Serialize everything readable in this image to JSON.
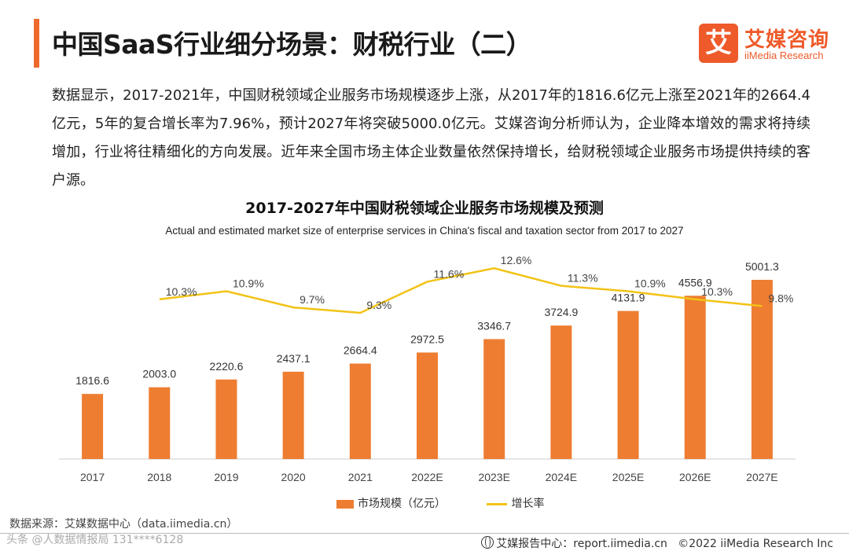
{
  "header": {
    "title": "中国SaaS行业细分场景：财税行业（二）",
    "logo_mark": "艾",
    "logo_cn": "艾媒咨询",
    "logo_en": "iiMedia Research"
  },
  "intro": "数据显示，2017-2021年，中国财税领域企业服务市场规模逐步上涨，从2017年的1816.6亿元上涨至2021年的2664.4亿元，5年的复合增长率为7.96%，预计2027年将突破5000.0亿元。艾媒咨询分析师认为，企业降本增效的需求将持续增加，行业将往精细化的方向发展。近年来全国市场主体企业数量依然保持增长，给财税领域企业服务市场提供持续的客户源。",
  "chart_data": {
    "type": "bar",
    "title": "2017-2027年中国财税领域企业服务市场规模及预测",
    "subtitle": "Actual and estimated market size of enterprise services in China's fiscal and taxation sector from 2017 to 2027",
    "categories": [
      "2017",
      "2018",
      "2019",
      "2020",
      "2021",
      "2022E",
      "2023E",
      "2024E",
      "2025E",
      "2026E",
      "2027E"
    ],
    "series": [
      {
        "name": "市场规模（亿元）",
        "type": "bar",
        "color": "#ee7d31",
        "values": [
          1816.6,
          2003.0,
          2220.6,
          2437.1,
          2664.4,
          2972.5,
          3346.7,
          3724.9,
          4131.9,
          4556.9,
          5001.3
        ],
        "labels": [
          "1816.6",
          "2003.0",
          "2220.6",
          "2437.1",
          "2664.4",
          "2972.5",
          "3346.7",
          "3724.9",
          "4131.9",
          "4556.9",
          "5001.3"
        ]
      },
      {
        "name": "增长率",
        "type": "line",
        "color": "#f2c317",
        "values": [
          null,
          10.3,
          10.9,
          9.7,
          9.3,
          11.6,
          12.6,
          11.3,
          10.9,
          10.3,
          9.8
        ],
        "labels": [
          null,
          "10.3%",
          "10.9%",
          "9.7%",
          "9.3%",
          "11.6%",
          "12.6%",
          "11.3%",
          "10.9%",
          "10.3%",
          "9.8%"
        ]
      }
    ],
    "legend": [
      "市场规模（亿元）",
      "增长率"
    ],
    "legend_position": "bottom"
  },
  "footer": {
    "source": "数据来源：艾媒数据中心（data.iimedia.cn）",
    "report_center": "艾媒报告中心：report.iimedia.cn",
    "copyright": "©2022 iiMedia Research Inc",
    "watermark": "头条 @人数据情报局 131****6128"
  }
}
